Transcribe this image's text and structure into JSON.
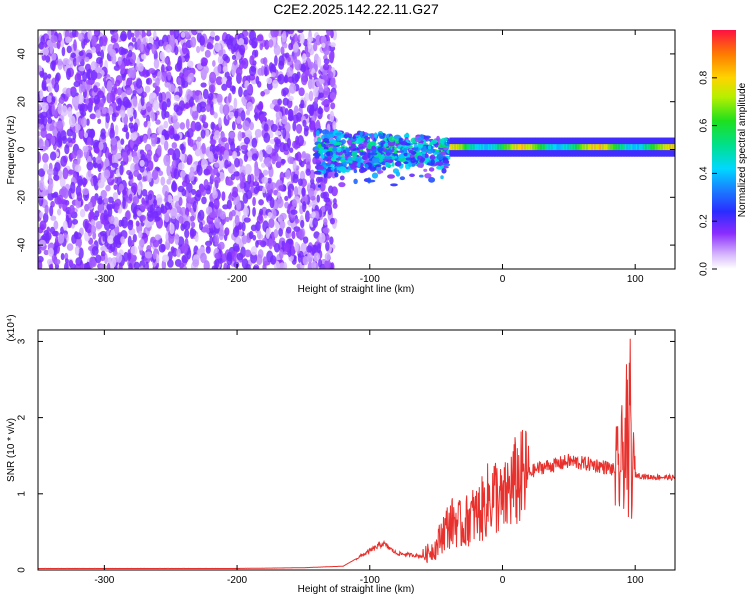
{
  "title": "C2E2.2025.142.22.11.G27",
  "colors": {
    "snr_line": "#e8302c",
    "spec_low": "#c7a6ff",
    "spec_mid": "#6a1bff",
    "axes": "#000000"
  },
  "chart_data": [
    {
      "type": "heatmap",
      "name": "spectrogram",
      "xlabel": "Height of straight line (km)",
      "ylabel": "Frequency (Hz)",
      "xlim": [
        -350,
        130
      ],
      "ylim": [
        -50,
        50
      ],
      "xticks": [
        -300,
        -200,
        -100,
        0,
        100
      ],
      "yticks": [
        -40,
        -20,
        0,
        20,
        40
      ],
      "colorbar": {
        "label": "Normalized spectral amplitude",
        "range": [
          0,
          1
        ],
        "ticks": [
          0.0,
          0.2,
          0.4,
          0.6,
          0.8
        ],
        "tick_labels": [
          "0.0",
          "0.2",
          "0.4",
          "0.6",
          "0.8"
        ]
      },
      "regions": [
        {
          "x_from": -350,
          "x_to": -140,
          "f_from": -50,
          "f_to": 50,
          "amplitude": 0.15
        },
        {
          "x_from": -140,
          "x_to": -40,
          "f_from": -10,
          "f_to": 8,
          "amplitude": 0.5
        },
        {
          "x_from": -40,
          "x_to": 130,
          "f_from": -2,
          "f_to": 4,
          "amplitude": 0.75
        }
      ]
    },
    {
      "type": "line",
      "name": "snr",
      "xlabel": "Height of straight line (km)",
      "ylabel": "SNR (10 * v/v)",
      "y_multiplier": "(x10⁴)",
      "xlim": [
        -350,
        130
      ],
      "ylim": [
        0,
        3.15
      ],
      "xticks": [
        -300,
        -200,
        -100,
        0,
        100
      ],
      "yticks": [
        0,
        1,
        2,
        3
      ],
      "series": [
        {
          "x": [
            -350,
            -300,
            -250,
            -200,
            -150,
            -120,
            -100,
            -90,
            -80,
            -70,
            -60,
            -50,
            -45,
            -40,
            -35,
            -30,
            -25,
            -20,
            -15,
            -10,
            -5,
            0,
            5,
            10,
            15,
            20,
            25,
            30,
            40,
            50,
            60,
            70,
            80,
            85,
            88,
            90,
            92,
            94,
            95,
            96,
            97,
            98,
            100,
            110,
            120,
            130
          ],
          "y": [
            0.02,
            0.02,
            0.02,
            0.02,
            0.03,
            0.05,
            0.25,
            0.35,
            0.22,
            0.2,
            0.18,
            0.3,
            0.5,
            0.6,
            0.65,
            0.55,
            0.7,
            0.72,
            0.8,
            0.95,
            1.0,
            0.85,
            1.05,
            1.15,
            1.2,
            1.27,
            1.32,
            1.35,
            1.38,
            1.43,
            1.4,
            1.38,
            1.34,
            1.3,
            1.25,
            1.45,
            1.6,
            1.9,
            0.5,
            3.1,
            1.3,
            1.25,
            1.25,
            1.22,
            1.22,
            1.21
          ]
        }
      ]
    }
  ]
}
